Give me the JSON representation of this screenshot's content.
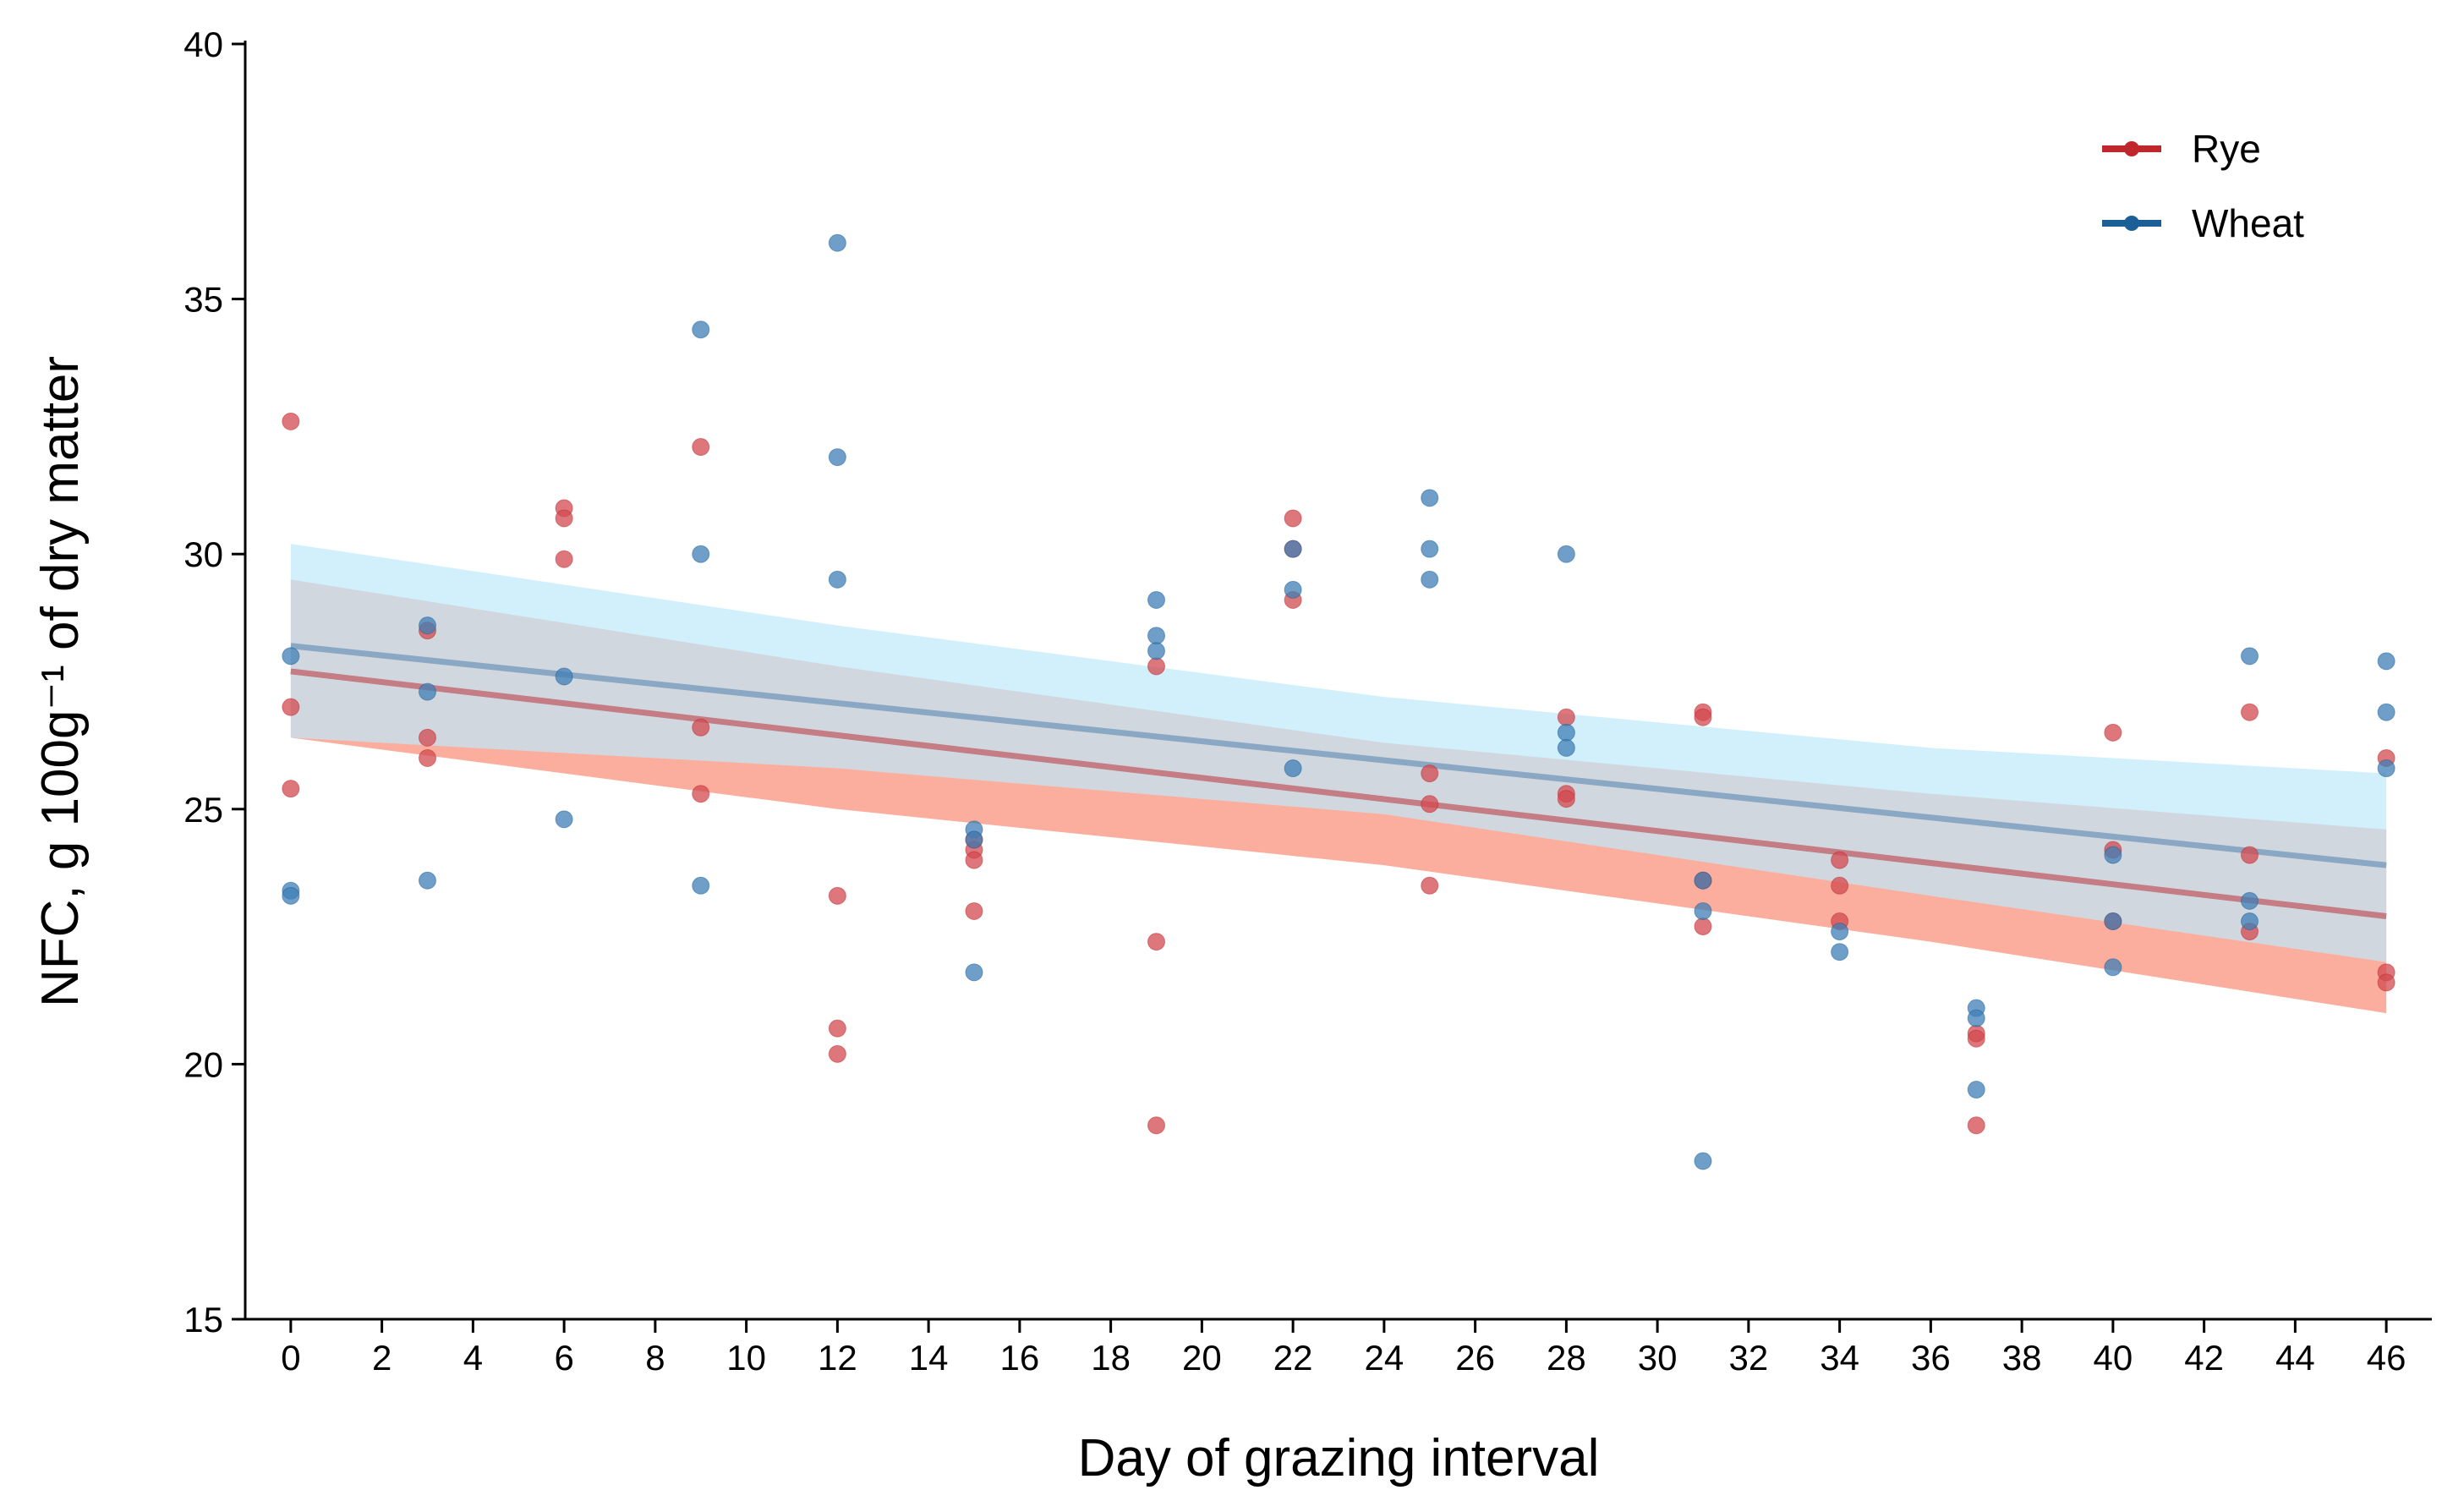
{
  "chart_data": {
    "type": "scatter",
    "title": "",
    "xlabel": "Day of grazing interval",
    "ylabel": "NFC, g 100g⁻¹ of dry matter",
    "xlim": [
      -1,
      47
    ],
    "ylim": [
      15,
      40
    ],
    "xticks": [
      0,
      2,
      4,
      6,
      8,
      10,
      12,
      14,
      16,
      18,
      20,
      22,
      24,
      26,
      28,
      30,
      32,
      34,
      36,
      38,
      40,
      42,
      44,
      46
    ],
    "yticks": [
      15,
      20,
      25,
      30,
      35,
      40
    ],
    "grid": false,
    "legend_position": "top-right",
    "series": [
      {
        "name": "Rye",
        "color": "#c0272d",
        "point_color": "#d24a4f",
        "band_color": "#fa8c74",
        "line_color": "#c47c85",
        "points": [
          [
            0,
            32.6
          ],
          [
            0,
            27.0
          ],
          [
            0,
            25.4
          ],
          [
            3,
            28.5
          ],
          [
            3,
            26.4
          ],
          [
            3,
            26.0
          ],
          [
            6,
            30.9
          ],
          [
            6,
            30.7
          ],
          [
            6,
            29.9
          ],
          [
            9,
            32.1
          ],
          [
            9,
            26.6
          ],
          [
            9,
            25.3
          ],
          [
            12,
            23.3
          ],
          [
            12,
            20.7
          ],
          [
            12,
            20.2
          ],
          [
            15,
            24.4
          ],
          [
            15,
            24.2
          ],
          [
            15,
            24.0
          ],
          [
            15,
            23.0
          ],
          [
            19,
            27.8
          ],
          [
            19,
            22.4
          ],
          [
            19,
            18.8
          ],
          [
            22,
            30.7
          ],
          [
            22,
            30.1
          ],
          [
            22,
            29.1
          ],
          [
            25,
            25.7
          ],
          [
            25,
            25.1
          ],
          [
            25,
            23.5
          ],
          [
            28,
            26.8
          ],
          [
            28,
            25.3
          ],
          [
            28,
            25.2
          ],
          [
            31,
            26.9
          ],
          [
            31,
            26.8
          ],
          [
            31,
            23.6
          ],
          [
            31,
            22.7
          ],
          [
            34,
            24.0
          ],
          [
            34,
            23.5
          ],
          [
            34,
            22.8
          ],
          [
            37,
            20.6
          ],
          [
            37,
            20.5
          ],
          [
            37,
            18.8
          ],
          [
            40,
            26.5
          ],
          [
            40,
            24.2
          ],
          [
            40,
            22.8
          ],
          [
            43,
            26.9
          ],
          [
            43,
            24.1
          ],
          [
            43,
            22.6
          ],
          [
            46,
            26.0
          ],
          [
            46,
            21.8
          ],
          [
            46,
            21.6
          ]
        ],
        "fit": {
          "x": [
            0,
            46
          ],
          "y": [
            27.7,
            22.9
          ]
        },
        "ci_lower": [
          [
            0,
            26.4
          ],
          [
            12,
            25.0
          ],
          [
            24,
            23.9
          ],
          [
            36,
            22.4
          ],
          [
            46,
            21.0
          ]
        ],
        "ci_upper": [
          [
            0,
            29.5
          ],
          [
            12,
            27.8
          ],
          [
            24,
            26.3
          ],
          [
            36,
            25.3
          ],
          [
            46,
            24.6
          ]
        ]
      },
      {
        "name": "Wheat",
        "color": "#1c5f96",
        "point_color": "#3f7fb5",
        "band_color": "#bfe8fb",
        "line_color": "#8aa8c4",
        "points": [
          [
            0,
            28.0
          ],
          [
            0,
            23.4
          ],
          [
            0,
            23.3
          ],
          [
            3,
            28.6
          ],
          [
            3,
            27.3
          ],
          [
            3,
            23.6
          ],
          [
            6,
            27.6
          ],
          [
            6,
            24.8
          ],
          [
            9,
            34.4
          ],
          [
            9,
            30.0
          ],
          [
            9,
            23.5
          ],
          [
            12,
            36.1
          ],
          [
            12,
            31.9
          ],
          [
            12,
            29.5
          ],
          [
            15,
            24.6
          ],
          [
            15,
            24.4
          ],
          [
            15,
            21.8
          ],
          [
            19,
            29.1
          ],
          [
            19,
            28.4
          ],
          [
            19,
            28.1
          ],
          [
            22,
            30.1
          ],
          [
            22,
            29.3
          ],
          [
            22,
            25.8
          ],
          [
            25,
            31.1
          ],
          [
            25,
            30.1
          ],
          [
            25,
            29.5
          ],
          [
            28,
            30.0
          ],
          [
            28,
            26.5
          ],
          [
            28,
            26.2
          ],
          [
            31,
            23.6
          ],
          [
            31,
            23.0
          ],
          [
            31,
            18.1
          ],
          [
            34,
            22.6
          ],
          [
            34,
            22.2
          ],
          [
            37,
            21.1
          ],
          [
            37,
            20.9
          ],
          [
            37,
            19.5
          ],
          [
            40,
            24.1
          ],
          [
            40,
            22.8
          ],
          [
            40,
            21.9
          ],
          [
            43,
            28.0
          ],
          [
            43,
            23.2
          ],
          [
            43,
            22.8
          ],
          [
            46,
            27.9
          ],
          [
            46,
            26.9
          ],
          [
            46,
            25.8
          ]
        ],
        "fit": {
          "x": [
            0,
            46
          ],
          "y": [
            28.2,
            23.9
          ]
        },
        "ci_lower": [
          [
            0,
            26.4
          ],
          [
            12,
            25.8
          ],
          [
            24,
            24.9
          ],
          [
            36,
            23.3
          ],
          [
            46,
            22.0
          ]
        ],
        "ci_upper": [
          [
            0,
            30.2
          ],
          [
            12,
            28.6
          ],
          [
            24,
            27.2
          ],
          [
            36,
            26.2
          ],
          [
            46,
            25.7
          ]
        ]
      }
    ]
  }
}
